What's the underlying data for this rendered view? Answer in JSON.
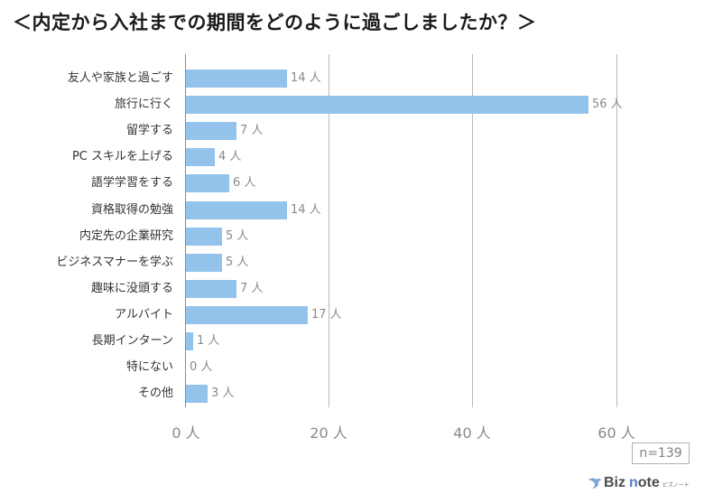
{
  "title": "＜内定から入社までの期間をどのように過ごしましたか？＞",
  "unit": "人",
  "sample": "n=139",
  "logo": {
    "brand_a": "Biz",
    "brand_b_first": "n",
    "brand_b_rest": "ote",
    "kana": "ビズノート"
  },
  "colors": {
    "bar": "#93c3ea",
    "value_text": "#8a8a8a",
    "grid": "#b8b8b8",
    "logo_accent": "#4f7fc3"
  },
  "axis": {
    "ticks": [
      "0 人",
      "20 人",
      "40 人",
      "60 人"
    ]
  },
  "rows": [
    {
      "label": "友人や家族と過ごす",
      "value": 14,
      "value_label": "14 人"
    },
    {
      "label": "旅行に行く",
      "value": 56,
      "value_label": "56 人"
    },
    {
      "label": "留学する",
      "value": 7,
      "value_label": "7 人"
    },
    {
      "label": "PC スキルを上げる",
      "value": 4,
      "value_label": "4 人"
    },
    {
      "label": "語学学習をする",
      "value": 6,
      "value_label": "6 人"
    },
    {
      "label": "資格取得の勉強",
      "value": 14,
      "value_label": "14 人"
    },
    {
      "label": "内定先の企業研究",
      "value": 5,
      "value_label": "5 人"
    },
    {
      "label": "ビジネスマナーを学ぶ",
      "value": 5,
      "value_label": "5 人"
    },
    {
      "label": "趣味に没頭する",
      "value": 7,
      "value_label": "7 人"
    },
    {
      "label": "アルバイト",
      "value": 17,
      "value_label": "17 人"
    },
    {
      "label": "長期インターン",
      "value": 1,
      "value_label": "1 人"
    },
    {
      "label": "特にない",
      "value": 0,
      "value_label": "0 人"
    },
    {
      "label": "その他",
      "value": 3,
      "value_label": "3 人"
    }
  ],
  "chart_data": {
    "type": "bar",
    "orientation": "horizontal",
    "title": "＜内定から入社までの期間をどのように過ごしましたか？＞",
    "categories": [
      "友人や家族と過ごす",
      "旅行に行く",
      "留学する",
      "PC スキルを上げる",
      "語学学習をする",
      "資格取得の勉強",
      "内定先の企業研究",
      "ビジネスマナーを学ぶ",
      "趣味に没頭する",
      "アルバイト",
      "長期インターン",
      "特にない",
      "その他"
    ],
    "values": [
      14,
      56,
      7,
      4,
      6,
      14,
      5,
      5,
      7,
      17,
      1,
      0,
      3
    ],
    "xlabel": "",
    "ylabel": "",
    "unit": "人",
    "xlim": [
      0,
      60
    ],
    "xticks": [
      0,
      20,
      40,
      60
    ],
    "xtick_labels": [
      "0 人",
      "20 人",
      "40 人",
      "60 人"
    ],
    "grid": true,
    "legend": null,
    "annotations": [
      "n=139"
    ]
  }
}
